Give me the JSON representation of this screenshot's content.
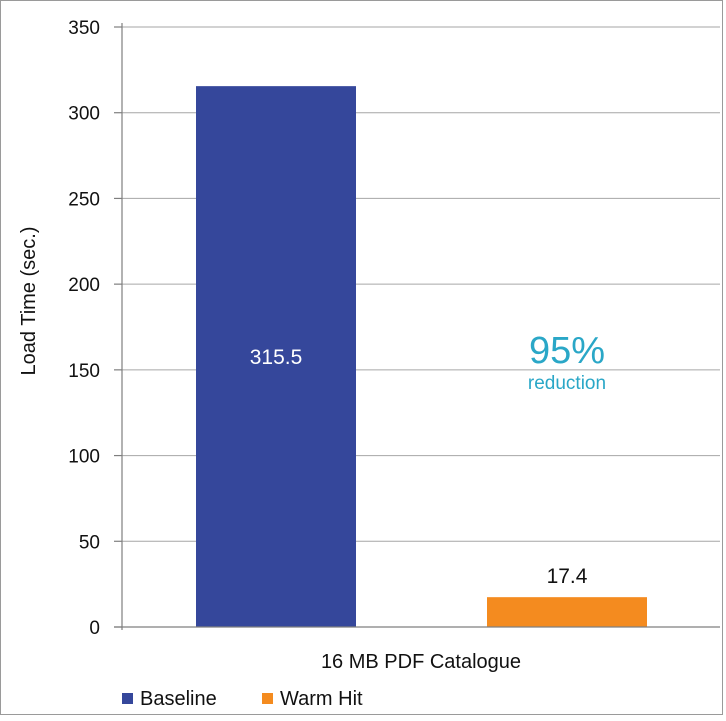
{
  "chart_data": {
    "type": "bar",
    "categories": [
      "16 MB PDF Catalogue"
    ],
    "series": [
      {
        "name": "Baseline",
        "values": [
          315.5
        ],
        "color": "#35479b",
        "value_label": "315.5"
      },
      {
        "name": "Warm Hit",
        "values": [
          17.4
        ],
        "color": "#f48b1f",
        "value_label": "17.4"
      }
    ],
    "ylabel": "Load Time (sec.)",
    "xlabel": "",
    "ylim": [
      0,
      350
    ],
    "yticks": [
      0,
      50,
      100,
      150,
      200,
      250,
      300,
      350
    ],
    "grid": true,
    "legend_position": "bottom-left",
    "annotation": {
      "value": "95%",
      "text": "reduction",
      "color": "#2aa7c7"
    }
  }
}
